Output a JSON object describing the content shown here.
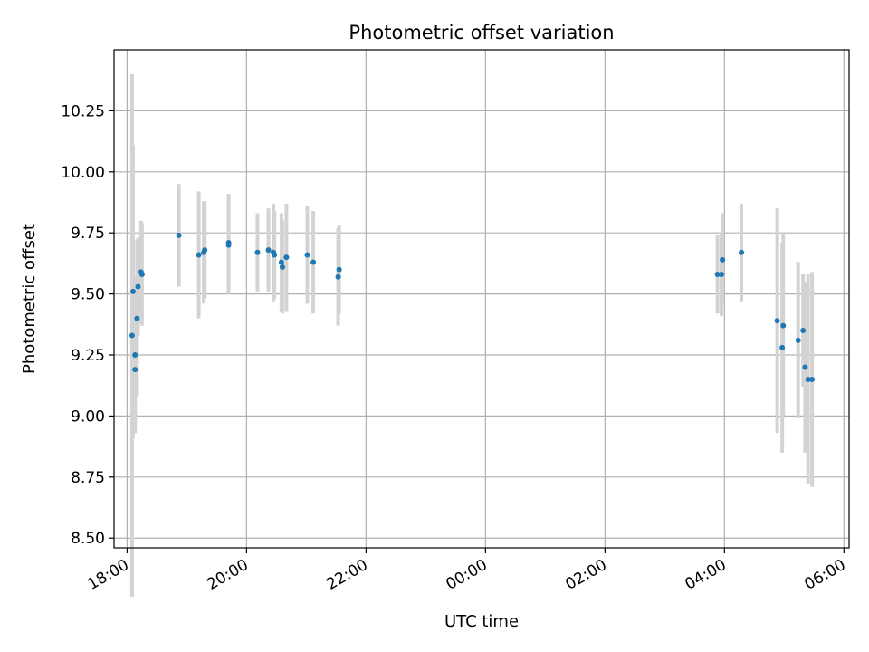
{
  "chart_data": {
    "type": "scatter",
    "title": "Photometric offset variation",
    "xlabel": "UTC time",
    "ylabel": "Photometric offset",
    "xlim": [
      "18:00",
      "30:00"
    ],
    "ylim": [
      8.46,
      10.5
    ],
    "grid": true,
    "x_tick_labels": [
      "18:00",
      "20:00",
      "22:00",
      "00:00",
      "02:00",
      "04:00",
      "06:00"
    ],
    "y_tick_labels": [
      "8.50",
      "8.75",
      "9.00",
      "9.25",
      "9.50",
      "9.75",
      "10.00",
      "10.25"
    ],
    "marker_color": "#1f77b4",
    "errorbar_color": "#d3d3d3",
    "series": [
      {
        "points": [
          {
            "t": "18:05",
            "y": 9.33,
            "err": 1.07
          },
          {
            "t": "18:06",
            "y": 9.51,
            "err": 0.6
          },
          {
            "t": "18:08",
            "y": 9.25,
            "err": 0.32
          },
          {
            "t": "18:08",
            "y": 9.19,
            "err": 0.22
          },
          {
            "t": "18:10",
            "y": 9.4,
            "err": 0.32
          },
          {
            "t": "18:11",
            "y": 9.53,
            "err": 0.2
          },
          {
            "t": "18:14",
            "y": 9.59,
            "err": 0.21
          },
          {
            "t": "18:15",
            "y": 9.58,
            "err": 0.21
          },
          {
            "t": "18:52",
            "y": 9.74,
            "err": 0.21
          },
          {
            "t": "19:12",
            "y": 9.66,
            "err": 0.26
          },
          {
            "t": "19:17",
            "y": 9.67,
            "err": 0.21
          },
          {
            "t": "19:18",
            "y": 9.68,
            "err": 0.2
          },
          {
            "t": "19:42",
            "y": 9.71,
            "err": 0.2
          },
          {
            "t": "19:42",
            "y": 9.7,
            "err": 0.2
          },
          {
            "t": "20:11",
            "y": 9.67,
            "err": 0.16
          },
          {
            "t": "20:22",
            "y": 9.68,
            "err": 0.17
          },
          {
            "t": "20:27",
            "y": 9.67,
            "err": 0.2
          },
          {
            "t": "20:28",
            "y": 9.66,
            "err": 0.18
          },
          {
            "t": "20:35",
            "y": 9.63,
            "err": 0.2
          },
          {
            "t": "20:36",
            "y": 9.61,
            "err": 0.19
          },
          {
            "t": "20:40",
            "y": 9.65,
            "err": 0.22
          },
          {
            "t": "21:01",
            "y": 9.66,
            "err": 0.2
          },
          {
            "t": "21:07",
            "y": 9.63,
            "err": 0.21
          },
          {
            "t": "21:32",
            "y": 9.57,
            "err": 0.2
          },
          {
            "t": "21:33",
            "y": 9.6,
            "err": 0.18
          },
          {
            "t": "27:53",
            "y": 9.58,
            "err": 0.16
          },
          {
            "t": "27:57",
            "y": 9.58,
            "err": 0.17
          },
          {
            "t": "27:58",
            "y": 9.64,
            "err": 0.19
          },
          {
            "t": "28:17",
            "y": 9.67,
            "err": 0.2
          },
          {
            "t": "28:53",
            "y": 9.39,
            "err": 0.46
          },
          {
            "t": "28:58",
            "y": 9.28,
            "err": 0.43
          },
          {
            "t": "28:59",
            "y": 9.37,
            "err": 0.38
          },
          {
            "t": "29:14",
            "y": 9.31,
            "err": 0.32
          },
          {
            "t": "29:19",
            "y": 9.35,
            "err": 0.23
          },
          {
            "t": "29:21",
            "y": 9.2,
            "err": 0.35
          },
          {
            "t": "29:24",
            "y": 9.15,
            "err": 0.43
          },
          {
            "t": "29:28",
            "y": 9.15,
            "err": 0.44
          }
        ]
      }
    ]
  }
}
